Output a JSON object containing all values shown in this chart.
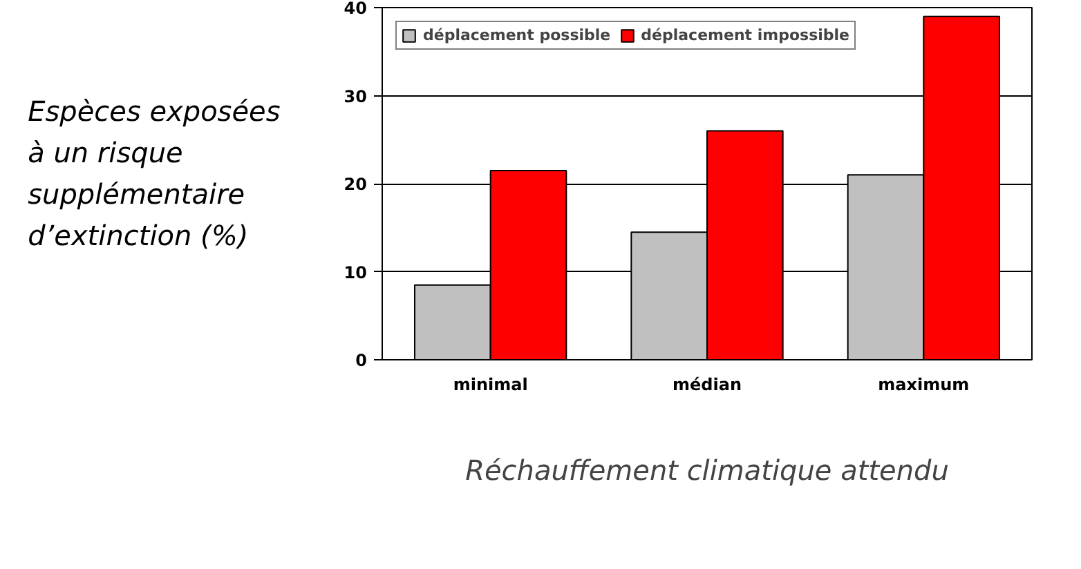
{
  "chart_data": {
    "type": "bar",
    "categories": [
      "minimal",
      "médian",
      "maximum"
    ],
    "series": [
      {
        "name": "déplacement possible",
        "color": "#c0c0c0",
        "values": [
          8.5,
          14.5,
          21
        ]
      },
      {
        "name": "déplacement impossible",
        "color": "#ff0000",
        "values": [
          21.5,
          26,
          39
        ]
      }
    ],
    "ylabel": "Espèces exposées à un risque supplémentaire d’extinction (%)",
    "xlabel": "Réchauffement climatique attendu",
    "ylim": [
      0,
      40
    ],
    "yticks": [
      0,
      10,
      20,
      30,
      40
    ],
    "grid": "y",
    "legend": "top"
  }
}
